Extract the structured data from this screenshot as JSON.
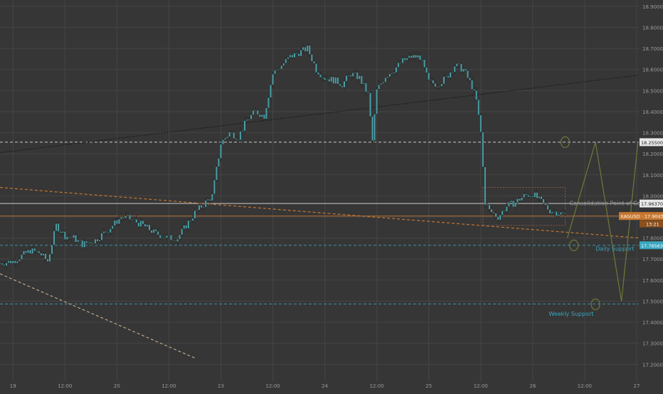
{
  "colors": {
    "background": "#363636",
    "grid": "#454545",
    "candle": "#4aa0a8",
    "candle_wick": "#2a2a2a",
    "axis_text": "#9a9a9a",
    "orange": "#c8772e",
    "cyan": "#3aa6bf",
    "white": "#e8e8e8",
    "black_trend": "#1a1a1a",
    "olive": "#6e7a3a"
  },
  "chart_data": {
    "type": "candlestick",
    "symbol": "XAGUSD",
    "ylim": [
      17.12,
      18.93
    ],
    "y_ticks": [
      "18.90000",
      "18.80000",
      "18.70000",
      "18.60000",
      "18.50000",
      "18.40000",
      "18.30000",
      "18.20000",
      "18.10000",
      "18.00000",
      "17.90000",
      "17.80000",
      "17.70000",
      "17.60000",
      "17.50000",
      "17.40000",
      "17.30000",
      "17.20000"
    ],
    "x_ticks": [
      {
        "label": "19",
        "t": 0
      },
      {
        "label": "12:00",
        "t": 12
      },
      {
        "label": "20",
        "t": 24
      },
      {
        "label": "12:00",
        "t": 36
      },
      {
        "label": "23",
        "t": 48
      },
      {
        "label": "12:00",
        "t": 60
      },
      {
        "label": "24",
        "t": 72
      },
      {
        "label": "12:00",
        "t": 84
      },
      {
        "label": "25",
        "t": 96
      },
      {
        "label": "12:00",
        "t": 108
      },
      {
        "label": "26",
        "t": 120
      },
      {
        "label": "12:00",
        "t": 132
      },
      {
        "label": "27",
        "t": 144
      }
    ],
    "xlim": [
      -3,
      144.5
    ],
    "price_path": [
      [
        -3,
        17.68
      ],
      [
        0,
        17.69
      ],
      [
        4,
        17.74
      ],
      [
        6,
        17.73
      ],
      [
        8,
        17.69
      ],
      [
        10,
        17.86
      ],
      [
        12,
        17.81
      ],
      [
        14,
        17.8
      ],
      [
        16,
        17.77
      ],
      [
        19,
        17.79
      ],
      [
        22,
        17.84
      ],
      [
        25,
        17.9
      ],
      [
        27,
        17.89
      ],
      [
        30,
        17.86
      ],
      [
        33,
        17.82
      ],
      [
        36,
        17.8
      ],
      [
        38,
        17.8
      ],
      [
        40,
        17.86
      ],
      [
        42,
        17.92
      ],
      [
        44,
        17.96
      ],
      [
        46,
        18.0
      ],
      [
        48,
        18.25
      ],
      [
        50,
        18.3
      ],
      [
        52,
        18.28
      ],
      [
        54,
        18.36
      ],
      [
        56,
        18.4
      ],
      [
        58,
        18.38
      ],
      [
        60,
        18.58
      ],
      [
        62,
        18.62
      ],
      [
        64,
        18.66
      ],
      [
        66,
        18.68
      ],
      [
        68,
        18.7
      ],
      [
        70,
        18.6
      ],
      [
        72,
        18.56
      ],
      [
        74,
        18.55
      ],
      [
        76,
        18.53
      ],
      [
        78,
        18.58
      ],
      [
        80,
        18.56
      ],
      [
        82,
        18.48
      ],
      [
        83,
        18.26
      ],
      [
        84,
        18.5
      ],
      [
        86,
        18.57
      ],
      [
        88,
        18.6
      ],
      [
        90,
        18.64
      ],
      [
        92,
        18.66
      ],
      [
        94,
        18.66
      ],
      [
        96,
        18.54
      ],
      [
        98,
        18.53
      ],
      [
        100,
        18.56
      ],
      [
        102,
        18.62
      ],
      [
        104,
        18.6
      ],
      [
        106,
        18.52
      ],
      [
        107,
        18.45
      ],
      [
        108,
        18.3
      ],
      [
        109,
        17.97
      ],
      [
        110,
        17.93
      ],
      [
        112,
        17.9
      ],
      [
        114,
        17.95
      ],
      [
        116,
        17.97
      ],
      [
        118,
        18.0
      ],
      [
        120,
        18.01
      ],
      [
        122,
        17.97
      ],
      [
        124,
        17.93
      ],
      [
        126,
        17.92
      ],
      [
        127.5,
        17.91
      ]
    ],
    "horizontal_levels": [
      {
        "price": 18.255,
        "label": "18.25500",
        "style": "dashed",
        "color": "#e8e8e8"
      },
      {
        "price": 17.9637,
        "label": "17.96370",
        "style": "solid",
        "color": "#e8e8e8"
      },
      {
        "price": 17.90438,
        "label": "XAGUSD · 17.90438",
        "style": "solid",
        "color": "#c8772e",
        "countdown": "13:21"
      },
      {
        "price": 17.7656,
        "label": "17.76563",
        "style": "dashed",
        "color": "#3aa6bf"
      },
      {
        "price": 17.487,
        "label": "",
        "style": "dashed",
        "color": "#3aa6bf"
      }
    ],
    "trendlines": [
      {
        "from": [
          -3,
          18.205
        ],
        "to": [
          144.5,
          18.573
        ],
        "color": "#1a1a1a",
        "style": "dotted"
      },
      {
        "from": [
          -3,
          18.04
        ],
        "to": [
          144.5,
          17.8
        ],
        "color": "#c8772e",
        "style": "dashed"
      },
      {
        "from": [
          -3,
          17.63
        ],
        "to": [
          42,
          17.23
        ],
        "color": "#c0a58a",
        "style": "dashed"
      }
    ],
    "consolidation_box": {
      "t0": 108.5,
      "t1": 127.5,
      "p_top": 18.04,
      "p_bottom": 17.86
    },
    "projection": [
      [
        128,
        17.8
      ],
      [
        134.5,
        18.255
      ],
      [
        140.5,
        17.5
      ],
      [
        144.3,
        18.255
      ]
    ],
    "circles": [
      [
        127.5,
        18.255
      ],
      [
        129.5,
        17.765
      ],
      [
        134.5,
        17.485
      ]
    ],
    "annotations": [
      {
        "text": "Consolidation Point of Control",
        "t": 128.5,
        "price": 17.955,
        "color": "#9a9a9a"
      },
      {
        "text": "Daily Support",
        "t": 134.5,
        "price": 17.74,
        "color": "#3aa6bf"
      },
      {
        "text": "Weekly Support",
        "t": 123.7,
        "price": 17.43,
        "color": "#3aa6bf"
      }
    ]
  }
}
